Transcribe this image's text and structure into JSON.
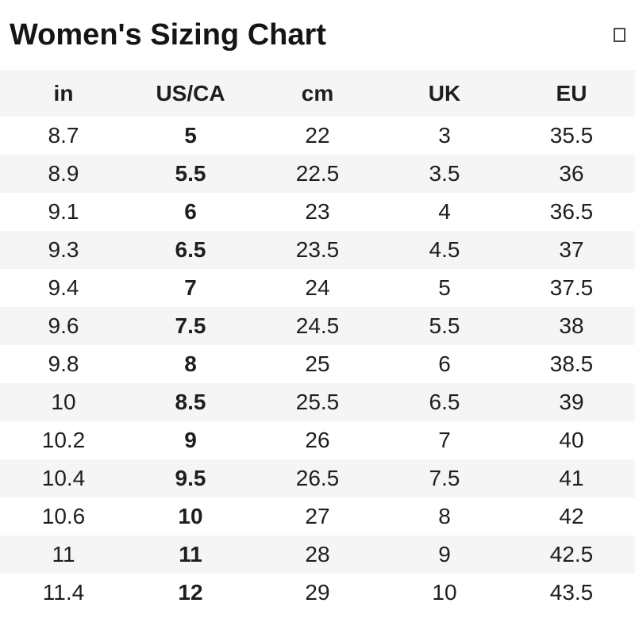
{
  "header": {
    "title": "Women's Sizing Chart",
    "placeholder_glyph": ""
  },
  "table": {
    "columns": [
      "in",
      "US/CA",
      "cm",
      "UK",
      "EU"
    ],
    "column_keys": [
      "in",
      "us-ca",
      "cm",
      "uk",
      "eu"
    ],
    "rows": [
      [
        "8.7",
        "5",
        "22",
        "3",
        "35.5"
      ],
      [
        "8.9",
        "5.5",
        "22.5",
        "3.5",
        "36"
      ],
      [
        "9.1",
        "6",
        "23",
        "4",
        "36.5"
      ],
      [
        "9.3",
        "6.5",
        "23.5",
        "4.5",
        "37"
      ],
      [
        "9.4",
        "7",
        "24",
        "5",
        "37.5"
      ],
      [
        "9.6",
        "7.5",
        "24.5",
        "5.5",
        "38"
      ],
      [
        "9.8",
        "8",
        "25",
        "6",
        "38.5"
      ],
      [
        "10",
        "8.5",
        "25.5",
        "6.5",
        "39"
      ],
      [
        "10.2",
        "9",
        "26",
        "7",
        "40"
      ],
      [
        "10.4",
        "9.5",
        "26.5",
        "7.5",
        "41"
      ],
      [
        "10.6",
        "10",
        "27",
        "8",
        "42"
      ],
      [
        "11",
        "11",
        "28",
        "9",
        "42.5"
      ],
      [
        "11.4",
        "12",
        "29",
        "10",
        "43.5"
      ]
    ]
  },
  "colors": {
    "stripe": "#f5f5f5",
    "text": "#1e1e1e",
    "title": "#151515",
    "background": "#ffffff"
  },
  "chart_data": {
    "type": "table",
    "title": "Women's Sizing Chart",
    "columns": [
      "in",
      "US/CA",
      "cm",
      "UK",
      "EU"
    ],
    "rows": [
      [
        8.7,
        5,
        22,
        3,
        35.5
      ],
      [
        8.9,
        5.5,
        22.5,
        3.5,
        36
      ],
      [
        9.1,
        6,
        23,
        4,
        36.5
      ],
      [
        9.3,
        6.5,
        23.5,
        4.5,
        37
      ],
      [
        9.4,
        7,
        24,
        5,
        37.5
      ],
      [
        9.6,
        7.5,
        24.5,
        5.5,
        38
      ],
      [
        9.8,
        8,
        25,
        6,
        38.5
      ],
      [
        10,
        8.5,
        25.5,
        6.5,
        39
      ],
      [
        10.2,
        9,
        26,
        7,
        40
      ],
      [
        10.4,
        9.5,
        26.5,
        7.5,
        41
      ],
      [
        10.6,
        10,
        27,
        8,
        42
      ],
      [
        11,
        11,
        28,
        9,
        42.5
      ],
      [
        11.4,
        12,
        29,
        10,
        43.5
      ]
    ],
    "layout": {
      "zebra_striping": true,
      "bold_column": "US/CA",
      "gridlines": false
    }
  }
}
